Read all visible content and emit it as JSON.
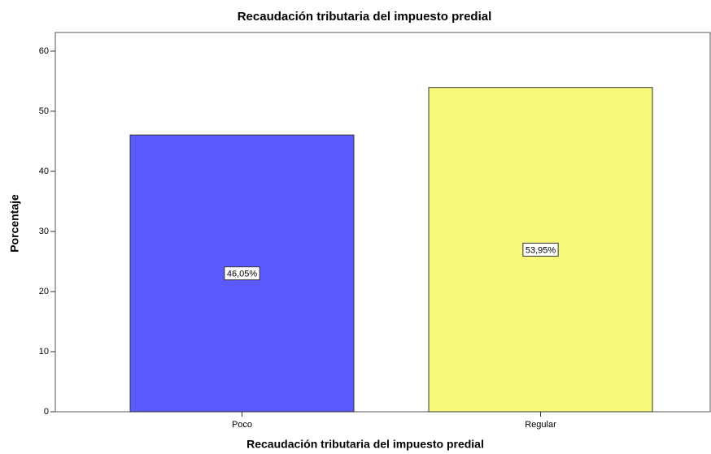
{
  "chart_data": {
    "type": "bar",
    "title": "Recaudación tributaria del impuesto predial",
    "x_label": "Recaudación tributaria del impuesto predial",
    "y_label": "Porcentaje",
    "categories": [
      "Poco",
      "Regular"
    ],
    "values": [
      46.05,
      53.95
    ],
    "value_labels": [
      "46,05%",
      "53,95%"
    ],
    "colors": [
      "#5a5aff",
      "#f8f87a"
    ],
    "ylim": [
      0,
      63.1
    ],
    "yticks": [
      0,
      10,
      20,
      30,
      40,
      50,
      60
    ]
  }
}
